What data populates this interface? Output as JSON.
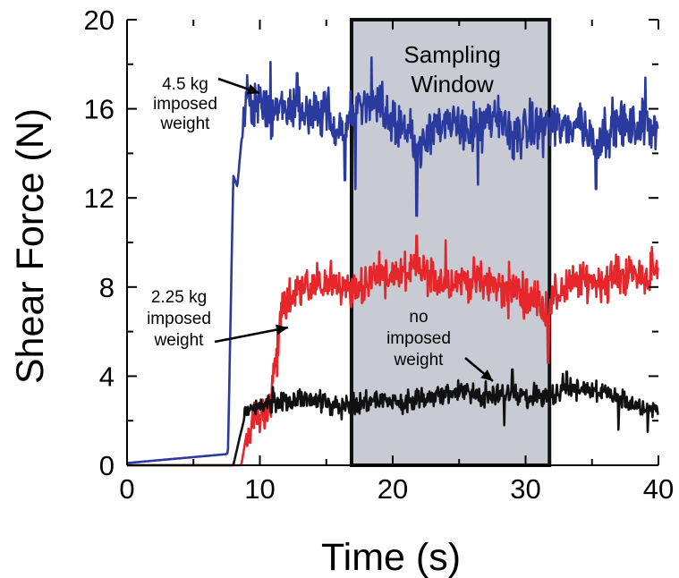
{
  "chart_data": {
    "type": "line",
    "title": "",
    "xlabel": "Time (s)",
    "ylabel": "Shear Force (N)",
    "xlim": [
      0,
      40
    ],
    "ylim": [
      0,
      20
    ],
    "x_ticks": [
      "0",
      "10",
      "20",
      "30",
      "40"
    ],
    "y_ticks": [
      "0",
      "4",
      "8",
      "12",
      "16",
      "20"
    ],
    "grid": false,
    "legend": "none",
    "shaded_region": {
      "label_lines": [
        "Sampling",
        "Window"
      ],
      "x_start": 16.9,
      "x_end": 31.8,
      "color": "#c8cbd3"
    },
    "series": [
      {
        "key": "heavy",
        "color": "#2b3a9e",
        "annotation": [
          "4.5 kg",
          "imposed",
          "weight"
        ],
        "base_points": [
          [
            0,
            0.1
          ],
          [
            7.5,
            0.5
          ],
          [
            7.6,
            0.6
          ],
          [
            8.0,
            13.0
          ],
          [
            8.3,
            12.5
          ],
          [
            8.6,
            14.5
          ],
          [
            9.0,
            16.5
          ],
          [
            9.5,
            16.0
          ],
          [
            10,
            16.2
          ],
          [
            11,
            15.8
          ],
          [
            12,
            16.0
          ],
          [
            13,
            16.2
          ],
          [
            14,
            15.5
          ],
          [
            15,
            16.0
          ],
          [
            16,
            15.0
          ],
          [
            17,
            15.6
          ],
          [
            18,
            16.3
          ],
          [
            19,
            16.0
          ],
          [
            20,
            15.5
          ],
          [
            21,
            15.2
          ],
          [
            22,
            14.2
          ],
          [
            23,
            15.5
          ],
          [
            24,
            15.0
          ],
          [
            25,
            15.4
          ],
          [
            26,
            15.0
          ],
          [
            27,
            15.2
          ],
          [
            28,
            15.6
          ],
          [
            29,
            14.8
          ],
          [
            30,
            15.0
          ],
          [
            31,
            15.2
          ],
          [
            32,
            15.4
          ],
          [
            33,
            15.0
          ],
          [
            34,
            15.6
          ],
          [
            35,
            14.6
          ],
          [
            36,
            15.0
          ],
          [
            37,
            15.4
          ],
          [
            38,
            15.0
          ],
          [
            39,
            15.4
          ],
          [
            40,
            15.2
          ]
        ],
        "noise_start": 8.6,
        "noise_amp": 1.6,
        "dips": [
          [
            17.2,
            12.4
          ],
          [
            21.8,
            11.2
          ],
          [
            26.4,
            12.6
          ],
          [
            35.3,
            12.4
          ],
          [
            16.4,
            12.8
          ]
        ],
        "peaks": [
          [
            10.8,
            18.1
          ],
          [
            18.4,
            18.3
          ],
          [
            12.8,
            17.6
          ],
          [
            39.0,
            17.4
          ]
        ]
      },
      {
        "key": "medium",
        "color": "#e5262a",
        "annotation": [
          "2.25 kg",
          "imposed",
          "weight"
        ],
        "base_points": [
          [
            0,
            0
          ],
          [
            8.6,
            0
          ],
          [
            9.0,
            1.4
          ],
          [
            9.5,
            2.0
          ],
          [
            10,
            2.2
          ],
          [
            10.8,
            2.6
          ],
          [
            11.2,
            5.0
          ],
          [
            11.6,
            6.5
          ],
          [
            12,
            7.5
          ],
          [
            13,
            7.8
          ],
          [
            14,
            8.0
          ],
          [
            15,
            8.2
          ],
          [
            16,
            8.0
          ],
          [
            17,
            8.0
          ],
          [
            18,
            8.2
          ],
          [
            19,
            8.6
          ],
          [
            20,
            8.5
          ],
          [
            21,
            8.6
          ],
          [
            22,
            8.8
          ],
          [
            23,
            8.4
          ],
          [
            24,
            8.2
          ],
          [
            25,
            8.4
          ],
          [
            26,
            8.3
          ],
          [
            27,
            8.2
          ],
          [
            28,
            8.0
          ],
          [
            29,
            8.0
          ],
          [
            30,
            7.6
          ],
          [
            31,
            7.4
          ],
          [
            31.7,
            6.8
          ],
          [
            32,
            7.4
          ],
          [
            33,
            8.0
          ],
          [
            34,
            8.2
          ],
          [
            35,
            8.3
          ],
          [
            36,
            8.2
          ],
          [
            37,
            8.5
          ],
          [
            38,
            8.6
          ],
          [
            39,
            8.5
          ],
          [
            40,
            8.6
          ]
        ],
        "noise_start": 9.0,
        "noise_amp": 1.3,
        "dips": [
          [
            31.7,
            4.6
          ],
          [
            11.3,
            4.0
          ],
          [
            28.7,
            6.6
          ]
        ],
        "peaks": [
          [
            21.8,
            10.3
          ],
          [
            24.0,
            10.1
          ],
          [
            39.5,
            9.8
          ]
        ]
      },
      {
        "key": "none",
        "color": "#111111",
        "annotation": [
          "no",
          "imposed",
          "weight"
        ],
        "base_points": [
          [
            0,
            0
          ],
          [
            8.0,
            0
          ],
          [
            8.5,
            1.3
          ],
          [
            9.0,
            2.5
          ],
          [
            10,
            2.7
          ],
          [
            11,
            2.9
          ],
          [
            12,
            2.9
          ],
          [
            13,
            3.0
          ],
          [
            14,
            2.9
          ],
          [
            15,
            2.8
          ],
          [
            16,
            2.7
          ],
          [
            17,
            2.8
          ],
          [
            18,
            2.9
          ],
          [
            19,
            2.9
          ],
          [
            20,
            2.9
          ],
          [
            21,
            2.8
          ],
          [
            22,
            2.9
          ],
          [
            23,
            3.1
          ],
          [
            24,
            3.2
          ],
          [
            25,
            3.3
          ],
          [
            26,
            3.2
          ],
          [
            27,
            3.1
          ],
          [
            28,
            3.2
          ],
          [
            29,
            3.3
          ],
          [
            30,
            3.0
          ],
          [
            31,
            3.1
          ],
          [
            32,
            3.2
          ],
          [
            33,
            3.3
          ],
          [
            34,
            3.5
          ],
          [
            35,
            3.3
          ],
          [
            36,
            3.2
          ],
          [
            37,
            3.0
          ],
          [
            38,
            2.8
          ],
          [
            39,
            2.6
          ],
          [
            40,
            2.5
          ]
        ],
        "noise_start": 8.8,
        "noise_amp": 0.7,
        "dips": [
          [
            28.4,
            1.8
          ],
          [
            37.0,
            1.6
          ],
          [
            39.2,
            1.5
          ]
        ],
        "peaks": [
          [
            29.0,
            4.3
          ],
          [
            33.1,
            4.2
          ],
          [
            32.8,
            4.1
          ]
        ]
      }
    ]
  }
}
